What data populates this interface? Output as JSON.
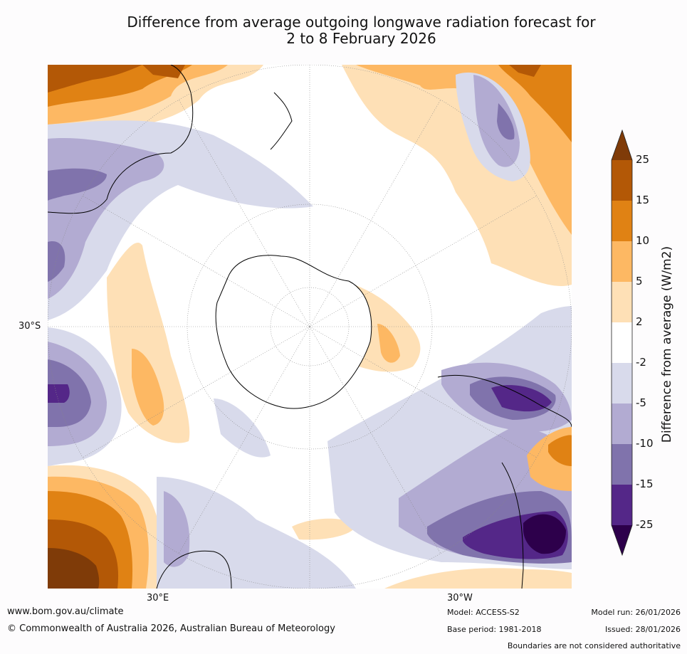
{
  "title": {
    "line1": "Difference from average outgoing longwave radiation forecast for",
    "line2": "2 to 8 February 2026"
  },
  "map_labels": {
    "lat_30s": "30°S",
    "lon_30e": "30°E",
    "lon_30w": "30°W"
  },
  "colorbar": {
    "title": "Difference from average (W/m2)",
    "ticks": [
      "25",
      "15",
      "10",
      "5",
      "2",
      "-2",
      "-5",
      "-10",
      "-15",
      "-25"
    ],
    "colors": {
      "gt25": "#7f3b08",
      "15_25": "#b35806",
      "10_15": "#e08214",
      "5_10": "#fdb863",
      "2_5": "#fee0b6",
      "m2_2": "#ffffff",
      "m5_m2": "#d8daeb",
      "m10_m5": "#b2abd2",
      "m15_m10": "#8073ac",
      "m25_m15": "#542788",
      "lt_m25": "#2d004b"
    }
  },
  "footer": {
    "website": "www.bom.gov.au/climate",
    "copyright": "© Commonwealth of Australia 2026, Australian Bureau of Meteorology",
    "model": "Model: ACCESS-S2",
    "base_period": "Base period: 1981-2018",
    "model_run": "Model run: 26/01/2026",
    "issued": "Issued: 28/01/2026",
    "disclaimer": "Boundaries are not considered authoritative"
  }
}
